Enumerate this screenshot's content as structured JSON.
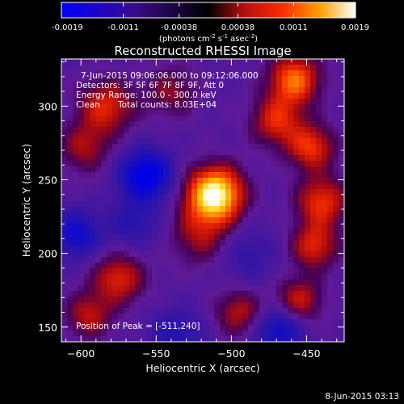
{
  "chart_data": {
    "type": "heatmap",
    "title": "Reconstructed RHESSI Image",
    "xlabel": "Heliocentric X (arcsec)",
    "ylabel": "Heliocentric Y (arcsec)",
    "xlim": [
      -613,
      -425
    ],
    "ylim": [
      140,
      332
    ],
    "x_ticks": [
      -600,
      -550,
      -500,
      -450
    ],
    "y_ticks": [
      150,
      200,
      250,
      300
    ],
    "colorbar": {
      "range": [
        -0.0019,
        0.0019
      ],
      "tick_values": [
        -0.0019,
        -0.0011,
        -0.00038,
        0.00038,
        0.0011,
        0.0019
      ],
      "tick_labels": [
        "-0.0019",
        "-0.0011",
        "-0.00038",
        "0.00038",
        "0.0011",
        "0.0019"
      ],
      "units_base": "(photons cm",
      "units_exp1": "-2",
      "units_mid": " s",
      "units_exp2": "-1",
      "units_mid2": " asec",
      "units_exp3": "-2",
      "units_end": ")"
    },
    "annotations": {
      "time_range": "7-Jun-2015 09:06:06.000 to 09:12:06.000",
      "detectors": "Detectors: 3F 5F 6F 7F 8F 9F, Att 0",
      "energy_range": "Energy Range: 100.0 - 300.0 keV",
      "method": "Clean",
      "total_counts": "Total counts: 8.03E+04",
      "peak_position": "Position of Peak = [-511,240]"
    },
    "footer_date": "8-Jun-2015 03:13",
    "sources": [
      {
        "x": -511,
        "y": 240,
        "amplitude": 0.0024,
        "sigma": 13
      },
      {
        "x": -520,
        "y": 212,
        "amplitude": 0.0008,
        "sigma": 14
      },
      {
        "x": -583,
        "y": 300,
        "amplitude": 0.0011,
        "sigma": 13
      },
      {
        "x": -598,
        "y": 272,
        "amplitude": 0.0008,
        "sigma": 12
      },
      {
        "x": -575,
        "y": 183,
        "amplitude": 0.0011,
        "sigma": 12
      },
      {
        "x": -595,
        "y": 158,
        "amplitude": 0.0009,
        "sigma": 11
      },
      {
        "x": -458,
        "y": 318,
        "amplitude": 0.0015,
        "sigma": 12
      },
      {
        "x": -470,
        "y": 290,
        "amplitude": 0.0011,
        "sigma": 12
      },
      {
        "x": -447,
        "y": 272,
        "amplitude": 0.0012,
        "sigma": 11
      },
      {
        "x": -440,
        "y": 235,
        "amplitude": 0.0012,
        "sigma": 12
      },
      {
        "x": -445,
        "y": 205,
        "amplitude": 0.0011,
        "sigma": 11
      },
      {
        "x": -455,
        "y": 168,
        "amplitude": 0.001,
        "sigma": 11
      },
      {
        "x": -495,
        "y": 160,
        "amplitude": 0.0009,
        "sigma": 11
      },
      {
        "x": -540,
        "y": 310,
        "amplitude": 0.0007,
        "sigma": 12
      },
      {
        "x": -557,
        "y": 253,
        "amplitude": -0.0016,
        "sigma": 12
      },
      {
        "x": -565,
        "y": 220,
        "amplitude": -0.0006,
        "sigma": 12
      },
      {
        "x": -603,
        "y": 213,
        "amplitude": -0.0011,
        "sigma": 11
      },
      {
        "x": -537,
        "y": 145,
        "amplitude": -0.0007,
        "sigma": 12
      },
      {
        "x": -468,
        "y": 148,
        "amplitude": -0.0011,
        "sigma": 11
      },
      {
        "x": -490,
        "y": 200,
        "amplitude": -0.0005,
        "sigma": 14
      }
    ]
  }
}
